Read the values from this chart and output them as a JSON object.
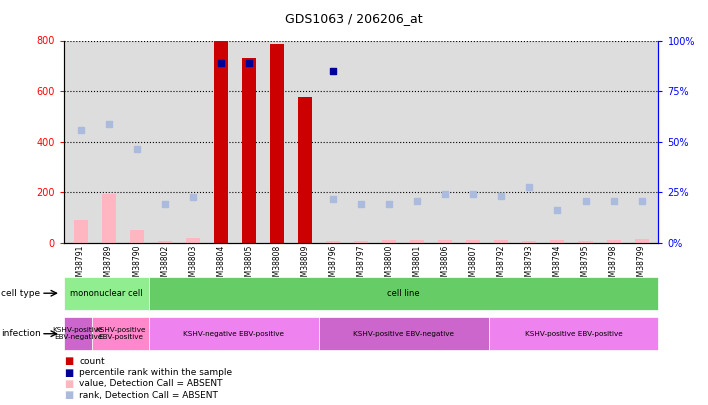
{
  "title": "GDS1063 / 206206_at",
  "samples": [
    "GSM38791",
    "GSM38789",
    "GSM38790",
    "GSM38802",
    "GSM38803",
    "GSM38804",
    "GSM38805",
    "GSM38808",
    "GSM38809",
    "GSM38796",
    "GSM38797",
    "GSM38800",
    "GSM38801",
    "GSM38806",
    "GSM38807",
    "GSM38792",
    "GSM38793",
    "GSM38794",
    "GSM38795",
    "GSM38798",
    "GSM38799"
  ],
  "count_values": [
    null,
    null,
    null,
    null,
    null,
    800,
    730,
    785,
    575,
    null,
    null,
    null,
    null,
    null,
    null,
    null,
    null,
    null,
    null,
    null,
    null
  ],
  "count_absent_values": [
    90,
    195,
    50,
    8,
    20,
    null,
    null,
    null,
    null,
    8,
    8,
    10,
    10,
    10,
    12,
    12,
    8,
    10,
    8,
    10,
    15
  ],
  "rank_values": [
    null,
    null,
    null,
    null,
    null,
    88.75,
    88.75,
    null,
    null,
    85.0,
    null,
    null,
    null,
    null,
    null,
    null,
    null,
    null,
    null,
    null,
    null
  ],
  "rank_absent_values": [
    55.6,
    58.75,
    46.25,
    19.375,
    22.5,
    null,
    null,
    null,
    null,
    21.875,
    19.375,
    19.375,
    20.625,
    24.375,
    24.375,
    23.125,
    27.5,
    16.25,
    20.625,
    20.625,
    20.625
  ],
  "cell_type_groups": [
    {
      "label": "mononuclear cell",
      "start": 0,
      "end": 3,
      "color": "#90ee90"
    },
    {
      "label": "cell line",
      "start": 3,
      "end": 21,
      "color": "#66cc66"
    }
  ],
  "infection_groups": [
    {
      "label": "KSHV-positive\nEBV-negative",
      "start": 0,
      "end": 1,
      "color": "#cc66cc"
    },
    {
      "label": "KSHV-positive\nEBV-positive",
      "start": 1,
      "end": 3,
      "color": "#ff88cc"
    },
    {
      "label": "KSHV-negative EBV-positive",
      "start": 3,
      "end": 9,
      "color": "#ee82ee"
    },
    {
      "label": "KSHV-positive EBV-negative",
      "start": 9,
      "end": 15,
      "color": "#cc66cc"
    },
    {
      "label": "KSHV-positive EBV-positive",
      "start": 15,
      "end": 21,
      "color": "#ee82ee"
    }
  ],
  "ylim_left": [
    0,
    800
  ],
  "ylim_right": [
    0,
    100
  ],
  "yticks_left": [
    0,
    200,
    400,
    600,
    800
  ],
  "yticks_right": [
    0,
    25,
    50,
    75,
    100
  ],
  "count_color": "#cc0000",
  "count_absent_color": "#ffb6c1",
  "rank_color": "#000099",
  "rank_absent_color": "#aabbdd",
  "bg_color": "#dddddd",
  "legend_items": [
    {
      "color": "#cc0000",
      "label": "count"
    },
    {
      "color": "#000099",
      "label": "percentile rank within the sample"
    },
    {
      "color": "#ffb6c1",
      "label": "value, Detection Call = ABSENT"
    },
    {
      "color": "#aabbdd",
      "label": "rank, Detection Call = ABSENT"
    }
  ]
}
